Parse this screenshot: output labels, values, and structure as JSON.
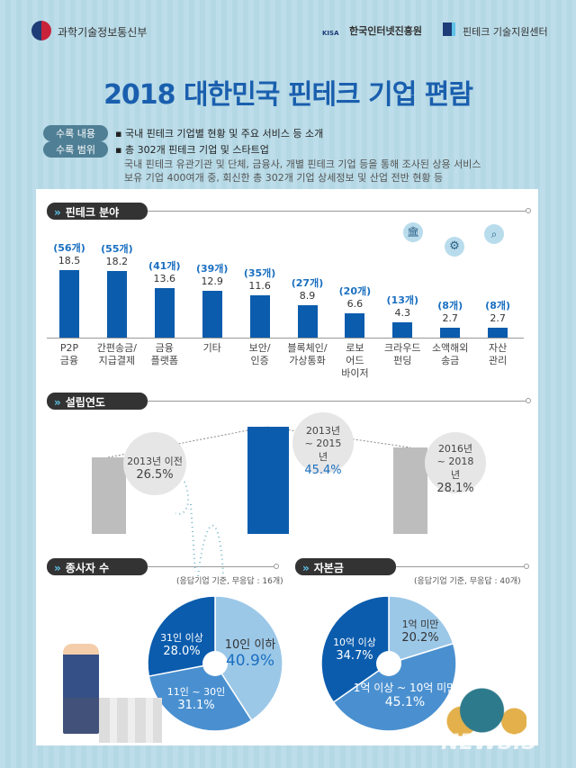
{
  "header": {
    "ministry": "과학기술정보통신부",
    "kisa_mark": "KISA",
    "kisa": "한국인터넷진흥원",
    "fintech_center": "핀테크 기술지원센터"
  },
  "title": "2018 대한민국 핀테크 기업 편람",
  "info": {
    "label1": "수록 내용",
    "text1": "▪ 국내 핀테크 기업별 현황 및 주요 서비스 등 소개",
    "label2": "수록 범위",
    "text2": "▪ 총 302개 핀테크 기업 및 스타트업",
    "text3": "국내 핀테크 유관기관 및 단체, 금융사, 개별 핀테크 기업 등을 통해 조사된 상용 서비스",
    "text4": "보유 기업 400여개 중, 회신한 총 302개 기업 상세정보 및 산업 전반 현황 등"
  },
  "sections": {
    "field": "핀테크 분야",
    "founding": "설립연도",
    "employees": "종사자 수",
    "capital": "자본금"
  },
  "colors": {
    "bar": "#0b5cad",
    "light": "#9cc8e8",
    "medium": "#4a90d0",
    "dark": "#0b5cad",
    "title": "#1a5fae"
  },
  "chart_data": [
    {
      "type": "bar",
      "title": "핀테크 분야",
      "categories": [
        "P2P 금융",
        "간편송금/ 지급결제",
        "금융 플랫폼",
        "기타",
        "보안/ 인증",
        "블록체인/ 가상통화",
        "로보 어드 바이저",
        "크라우드 펀딩",
        "소액해외 송금",
        "자산 관리"
      ],
      "values": [
        18.5,
        18.2,
        13.6,
        12.9,
        11.6,
        8.9,
        6.6,
        4.3,
        2.7,
        2.7
      ],
      "value_labels": [
        "18.5",
        "18.2",
        "13.6",
        "12.9",
        "11.6",
        "8.9",
        "6.6",
        "4.3",
        "2.7",
        "2.7"
      ],
      "counts": [
        "(56개)",
        "(55개)",
        "(41개)",
        "(39개)",
        "(35개)",
        "(27개)",
        "(20개)",
        "(13개)",
        "(8개)",
        "(8개)"
      ]
    },
    {
      "type": "pie",
      "title": "설립연도",
      "categories": [
        "2013년 이전",
        "2013년 ~ 2015년",
        "2016년 ~ 2018년"
      ],
      "values": [
        26.5,
        45.4,
        28.1
      ],
      "value_labels": [
        "26.5%",
        "45.4%",
        "28.1%"
      ]
    },
    {
      "type": "pie",
      "title": "종사자 수",
      "note": "(응답기업 기준, 무응답 : 16개)",
      "categories": [
        "10인 이하",
        "11인 ~ 30인",
        "31인 이상"
      ],
      "values": [
        40.9,
        31.1,
        28.0
      ],
      "value_labels": [
        "40.9%",
        "31.1%",
        "28.0%"
      ]
    },
    {
      "type": "pie",
      "title": "자본금",
      "note": "(응답기업 기준, 무응답 : 40개)",
      "categories": [
        "1억 미만",
        "1억 이상 ~ 10억 미만",
        "10억 이상"
      ],
      "values": [
        20.2,
        45.1,
        34.7
      ],
      "value_labels": [
        "20.2%",
        "45.1%",
        "34.7%"
      ]
    }
  ],
  "watermark": "NEWSIS"
}
